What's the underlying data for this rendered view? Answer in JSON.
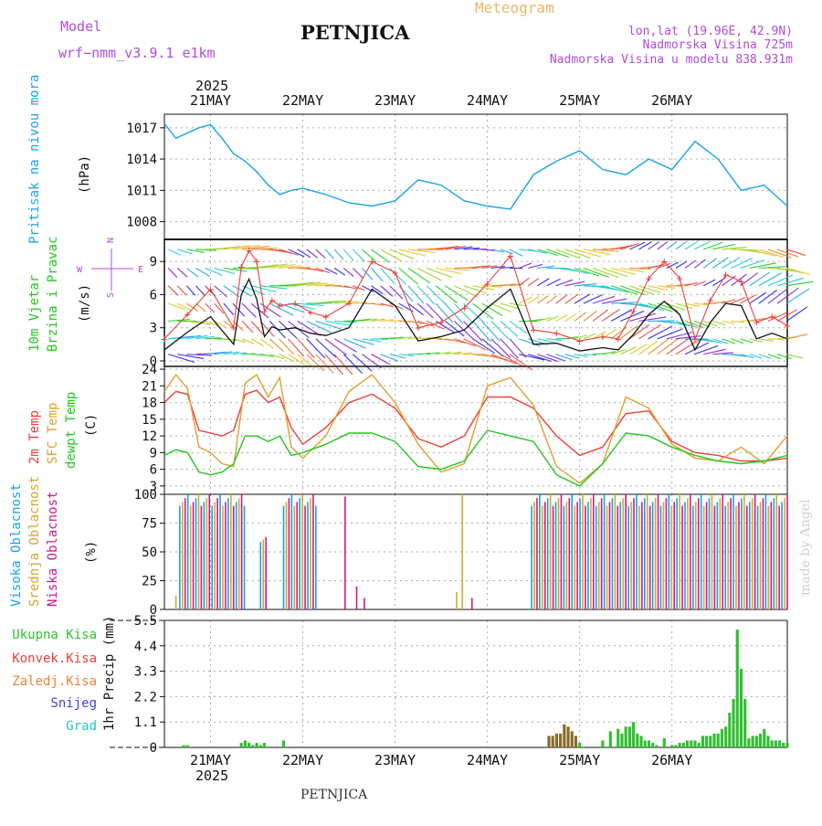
{
  "header": {
    "model_label": "Model",
    "model_name": "wrf−nmm_v3.9.1  e1km",
    "title": "PETNJICA",
    "chart_kind": "Meteogram",
    "coords": "lon,lat (19.96E, 42.9N)",
    "elevation": "Nadmorska Visina 725m",
    "model_elevation": "Nadmorska Visina u modelu 838.931m",
    "year_top": "2025",
    "year_bottom": "2025",
    "footer_station": "PETNJICA",
    "watermark": "made by Angel"
  },
  "colors": {
    "pressure": "#1aa3e8",
    "temp2m": "#e8413a",
    "sfc": "#e0a030",
    "dew": "#22c81e",
    "wind": "#111111",
    "gust": "#e8413a",
    "high_cloud": "#1ca0e6",
    "mid_cloud": "#d8a630",
    "low_cloud": "#cc1a8e",
    "precip_total": "#30c030",
    "precip_conv": "#e8413a",
    "precip_frozen": "#e8843a",
    "snow": "#4040dd",
    "hail": "#2ec4c4",
    "purple_text": "#b04cd8",
    "orange_text": "#e8b868"
  },
  "chart_data": [
    {
      "type": "line",
      "panel": "pressure",
      "ylabel": [
        "Pritisak na nivou mora",
        "(hPa)"
      ],
      "x_unit": "hours since 2025-05-20 12 UTC",
      "x_ticks": [
        "21MAY",
        "22MAY",
        "23MAY",
        "24MAY",
        "25MAY",
        "26MAY"
      ],
      "yticks": [
        1008,
        1011,
        1014,
        1017
      ],
      "ylim": [
        1006.3,
        1018.3
      ],
      "grid": true,
      "series": [
        {
          "name": "",
          "x": [
            0,
            3,
            6,
            9,
            12,
            15,
            18,
            21,
            24,
            27,
            30,
            33,
            36,
            42,
            48,
            54,
            60,
            66,
            72,
            78,
            84,
            90,
            96,
            102,
            108,
            114,
            120,
            126,
            132,
            138,
            144,
            150,
            156,
            162
          ],
          "values": [
            1017.4,
            1016.0,
            1016.5,
            1017.0,
            1017.3,
            1016.0,
            1014.5,
            1013.8,
            1012.8,
            1011.5,
            1010.6,
            1011.0,
            1011.2,
            1010.6,
            1009.8,
            1009.5,
            1010.0,
            1012.0,
            1011.5,
            1010.0,
            1009.5,
            1009.2,
            1012.5,
            1013.8,
            1014.8,
            1013.0,
            1012.5,
            1014.0,
            1013.0,
            1015.7,
            1014.0,
            1011.0,
            1011.5,
            1009.5
          ]
        }
      ]
    },
    {
      "type": "line",
      "panel": "wind",
      "ylabel": [
        "10m Vjetar",
        "Brzina i Pravac",
        "(m/s)"
      ],
      "compass": [
        "N",
        "E",
        "S",
        "W"
      ],
      "yticks": [
        0,
        3,
        6,
        9
      ],
      "ylim": [
        -0.5,
        11
      ],
      "grid": true,
      "series": [
        {
          "name": "speed",
          "x": [
            0,
            6,
            12,
            18,
            20,
            22,
            24,
            26,
            28,
            30,
            34,
            38,
            42,
            48,
            54,
            60,
            66,
            72,
            78,
            84,
            90,
            96,
            102,
            108,
            114,
            118,
            122,
            126,
            130,
            134,
            138,
            142,
            146,
            150,
            154,
            158,
            162
          ],
          "values": [
            1.0,
            2.6,
            4.0,
            1.5,
            6.0,
            7.4,
            5.6,
            2.2,
            3.1,
            2.8,
            3.0,
            2.5,
            2.3,
            3.0,
            6.5,
            5.0,
            1.8,
            2.2,
            2.8,
            4.8,
            6.5,
            1.5,
            1.6,
            0.9,
            1.2,
            1.0,
            2.4,
            4.2,
            5.4,
            4.2,
            1.0,
            3.5,
            5.2,
            5.0,
            2.0,
            2.5,
            2.0
          ]
        },
        {
          "name": "gust",
          "x": [
            0,
            6,
            12,
            18,
            20,
            22,
            24,
            26,
            28,
            30,
            34,
            38,
            42,
            48,
            54,
            60,
            66,
            72,
            78,
            84,
            90,
            96,
            102,
            108,
            114,
            118,
            122,
            126,
            130,
            134,
            138,
            142,
            146,
            150,
            154,
            158,
            162
          ],
          "values": [
            2.0,
            4.2,
            6.5,
            3.0,
            8.5,
            10.0,
            9.0,
            4.5,
            5.5,
            5.0,
            5.2,
            4.4,
            4.0,
            5.2,
            9.0,
            8.0,
            3.0,
            3.5,
            4.8,
            7.0,
            9.5,
            2.8,
            2.5,
            1.8,
            2.2,
            2.0,
            4.5,
            7.5,
            9.0,
            7.5,
            2.0,
            5.5,
            7.8,
            7.2,
            3.5,
            4.0,
            3.2
          ]
        }
      ]
    },
    {
      "type": "line",
      "panel": "temperature",
      "ylabel": [
        "2m Temp",
        "SFC Temp",
        "dewpt Temp",
        "(C)"
      ],
      "yticks": [
        3,
        6,
        9,
        12,
        15,
        18,
        21,
        24
      ],
      "ylim": [
        1.5,
        24.5
      ],
      "grid": true,
      "series": [
        {
          "name": "2m Temp",
          "x": [
            0,
            3,
            6,
            9,
            12,
            15,
            18,
            21,
            24,
            27,
            30,
            33,
            36,
            42,
            48,
            54,
            60,
            66,
            72,
            78,
            84,
            90,
            96,
            102,
            108,
            114,
            120,
            126,
            132,
            138,
            144,
            150,
            156,
            162
          ],
          "values": [
            18.0,
            20.0,
            19.5,
            13.0,
            12.5,
            12.0,
            13.0,
            19.5,
            20.2,
            18.0,
            19.0,
            13.5,
            10.5,
            13.5,
            18.0,
            19.5,
            17.0,
            11.5,
            10.0,
            12.0,
            19.0,
            19.0,
            17.0,
            12.0,
            8.5,
            10.0,
            16.0,
            16.5,
            11.0,
            9.0,
            8.5,
            7.5,
            7.5,
            8.0
          ]
        },
        {
          "name": "SFC Temp",
          "x": [
            0,
            3,
            6,
            9,
            12,
            15,
            18,
            21,
            24,
            27,
            30,
            33,
            36,
            42,
            48,
            54,
            60,
            66,
            72,
            78,
            84,
            90,
            96,
            102,
            108,
            114,
            120,
            126,
            132,
            138,
            144,
            150,
            156,
            162
          ],
          "values": [
            20.0,
            23.0,
            20.5,
            10.0,
            9.0,
            7.0,
            6.5,
            21.5,
            23.0,
            19.0,
            22.5,
            10.0,
            8.0,
            12.0,
            20.0,
            23.0,
            18.0,
            10.5,
            5.5,
            7.0,
            21.0,
            22.5,
            17.5,
            6.5,
            3.5,
            7.0,
            19.0,
            17.0,
            10.5,
            8.0,
            7.5,
            10.0,
            7.0,
            12.0
          ]
        },
        {
          "name": "dewpt Temp",
          "x": [
            0,
            3,
            6,
            9,
            12,
            15,
            18,
            21,
            24,
            27,
            30,
            33,
            36,
            42,
            48,
            54,
            60,
            66,
            72,
            78,
            84,
            90,
            96,
            102,
            108,
            114,
            120,
            126,
            132,
            138,
            144,
            150,
            156,
            162
          ],
          "values": [
            8.5,
            9.5,
            9.0,
            5.5,
            5.0,
            5.5,
            7.0,
            12.0,
            12.0,
            11.0,
            12.0,
            8.5,
            9.0,
            10.5,
            12.5,
            12.5,
            11.0,
            6.5,
            6.0,
            7.5,
            13.0,
            12.0,
            11.0,
            5.0,
            3.0,
            7.0,
            12.5,
            12.0,
            10.0,
            8.5,
            7.5,
            7.0,
            7.5,
            8.5
          ]
        }
      ]
    },
    {
      "type": "bar",
      "panel": "cloud",
      "ylabel": [
        "Visoka Oblacnost",
        "Srednja Oblacnost",
        "Niska Oblacnost",
        "(%)"
      ],
      "yticks": [
        0,
        25,
        50,
        75,
        100
      ],
      "ylim": [
        0,
        100
      ],
      "grid": true,
      "blocks": [
        {
          "x": [
            4,
            21
          ],
          "value": 100
        },
        {
          "x": [
            25,
            27
          ],
          "value": 65
        },
        {
          "x": [
            31,
            40
          ],
          "value": 100
        },
        {
          "x": [
            95.5,
            162
          ],
          "value": 100
        }
      ],
      "single_bars": [
        {
          "x": 3,
          "value": 12,
          "color": "mid"
        },
        {
          "x": 47,
          "value": 98,
          "color": "low"
        },
        {
          "x": 50,
          "value": 20,
          "color": "low"
        },
        {
          "x": 52,
          "value": 10,
          "color": "low"
        },
        {
          "x": 76,
          "value": 15,
          "color": "mid"
        },
        {
          "x": 77.5,
          "value": 100,
          "color": "mid"
        },
        {
          "x": 80,
          "value": 10,
          "color": "low"
        }
      ]
    },
    {
      "type": "bar",
      "panel": "precip",
      "ylabel": [
        "1hr Precip (mm)"
      ],
      "legend": [
        "Ukupna Kisa",
        "Konvek.Kisa",
        "Zaledj.Kisa",
        "Snijeg",
        "Grad"
      ],
      "yticks": [
        0,
        1.1,
        2.2,
        3.3,
        4.4,
        5.5
      ],
      "ylim": [
        0,
        5.5
      ],
      "grid": true,
      "x": [
        5,
        6,
        20,
        21,
        22,
        23,
        24,
        25,
        26,
        31,
        100,
        101,
        102,
        103,
        104,
        105,
        106,
        107,
        108,
        114,
        116,
        118,
        119,
        120,
        121,
        122,
        123,
        124,
        125,
        126,
        127,
        128,
        130,
        132,
        133,
        134,
        135,
        136,
        137,
        138,
        139,
        140,
        141,
        142,
        143,
        144,
        145,
        146,
        147,
        148,
        149,
        150,
        151,
        152,
        153,
        154,
        155,
        156,
        157,
        158,
        159,
        160,
        161,
        162
      ],
      "values": [
        0.1,
        0.1,
        0.2,
        0.3,
        0.2,
        0.1,
        0.2,
        0.1,
        0.2,
        0.3,
        0.5,
        0.5,
        0.6,
        0.6,
        1.0,
        0.9,
        0.7,
        0.5,
        0.2,
        0.3,
        0.7,
        0.8,
        0.6,
        0.9,
        0.9,
        1.1,
        0.6,
        0.5,
        0.3,
        0.3,
        0.2,
        0.1,
        0.4,
        0.1,
        0.1,
        0.2,
        0.2,
        0.3,
        0.3,
        0.3,
        0.2,
        0.5,
        0.5,
        0.5,
        0.6,
        0.6,
        0.8,
        0.9,
        1.5,
        2.1,
        5.1,
        3.4,
        2.1,
        0.4,
        0.5,
        0.5,
        0.6,
        0.8,
        0.5,
        0.3,
        0.3,
        0.3,
        0.2,
        0.2
      ],
      "brown_x": [
        100,
        101,
        102,
        103,
        104,
        105,
        106,
        107
      ]
    }
  ]
}
